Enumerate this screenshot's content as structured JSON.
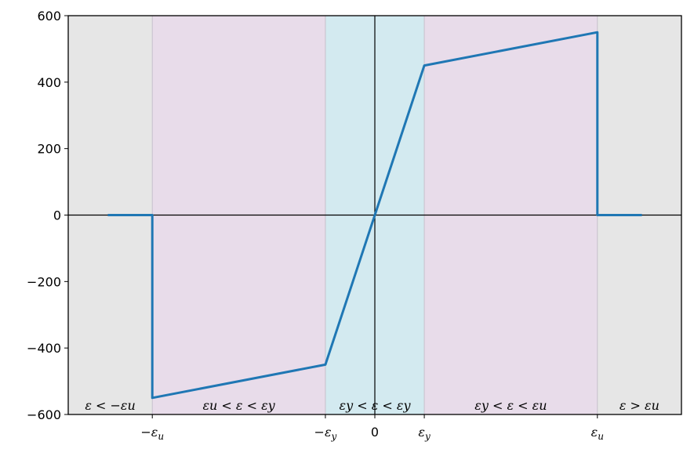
{
  "chart_data": {
    "type": "line",
    "title": "",
    "xlabel": "",
    "ylabel": "",
    "xlim": [
      -0.0062,
      0.0062
    ],
    "ylim": [
      -600,
      600
    ],
    "grid": false,
    "x_ticks": [
      {
        "value": -0.0045,
        "label": "−εu",
        "base": "−ε",
        "sub": "u"
      },
      {
        "value": -0.001,
        "label": "−εy",
        "base": "−ε",
        "sub": "y"
      },
      {
        "value": 0,
        "label": "0",
        "base": "0",
        "sub": ""
      },
      {
        "value": 0.001,
        "label": "εy",
        "base": "ε",
        "sub": "y"
      },
      {
        "value": 0.0045,
        "label": "εu",
        "base": "ε",
        "sub": "u"
      }
    ],
    "y_ticks": [
      {
        "value": 600,
        "label": "600"
      },
      {
        "value": 400,
        "label": "400"
      },
      {
        "value": 200,
        "label": "200"
      },
      {
        "value": 0,
        "label": "0"
      },
      {
        "value": -200,
        "label": "−200"
      },
      {
        "value": -400,
        "label": "−400"
      },
      {
        "value": -600,
        "label": "−600"
      }
    ],
    "regions": [
      {
        "from": -0.0062,
        "to": -0.0045,
        "color": "#e6e6e6",
        "label": "ε < −εu"
      },
      {
        "from": -0.0045,
        "to": -0.001,
        "color": "#e8dcea",
        "label": "εu < ε < εy"
      },
      {
        "from": -0.001,
        "to": 0.001,
        "color": "#d3eaf0",
        "label": "εy < ε < εy"
      },
      {
        "from": 0.001,
        "to": 0.0045,
        "color": "#e8dcea",
        "label": "εy < ε < εu"
      },
      {
        "from": 0.0045,
        "to": 0.0062,
        "color": "#e6e6e6",
        "label": "ε > εu"
      }
    ],
    "series": [
      {
        "color": "#1f77b4",
        "x": [
          -0.0054,
          -0.0045,
          -0.0045,
          -0.001,
          0.001,
          0.0045,
          0.0045,
          0.0054
        ],
        "y": [
          0,
          0,
          -550,
          -450,
          450,
          550,
          0,
          0
        ]
      }
    ]
  }
}
